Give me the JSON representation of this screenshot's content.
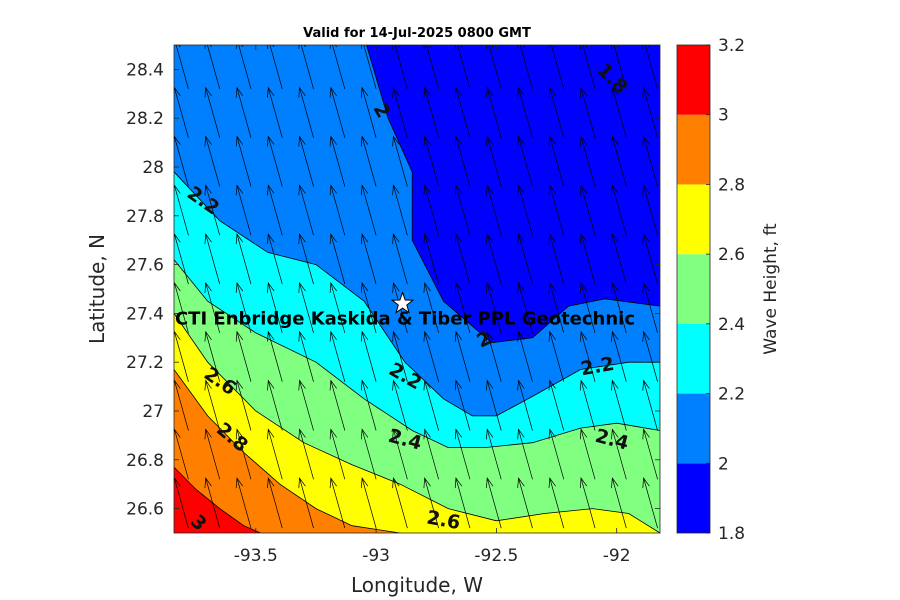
{
  "chart_data": {
    "type": "contour",
    "title": "Valid for 14-Jul-2025 0800 GMT",
    "xlabel": "Longitude, W",
    "ylabel": "Latitude, N",
    "xlim": [
      -93.84,
      -91.82
    ],
    "ylim": [
      26.5,
      28.5
    ],
    "xticks": [
      -93.5,
      -93,
      -92.5,
      -92
    ],
    "xtick_labels": [
      "-93.5",
      "-93",
      "-92.5",
      "-92"
    ],
    "yticks": [
      26.6,
      26.8,
      27,
      27.2,
      27.4,
      27.6,
      27.8,
      28,
      28.2,
      28.4
    ],
    "ytick_labels": [
      "26.6",
      "26.8",
      "27",
      "27.2",
      "27.4",
      "27.6",
      "27.8",
      "28",
      "28.2",
      "28.4"
    ],
    "colorbar": {
      "label": "Wave Height, ft",
      "range": [
        1.8,
        3.2
      ],
      "ticks": [
        "1.8",
        "2",
        "2.2",
        "2.4",
        "2.6",
        "2.8",
        "3",
        "3.2"
      ],
      "bands": [
        {
          "from": 1.8,
          "to": 2.0,
          "color": "#0000ff"
        },
        {
          "from": 2.0,
          "to": 2.2,
          "color": "#0080ff"
        },
        {
          "from": 2.2,
          "to": 2.4,
          "color": "#00ffff"
        },
        {
          "from": 2.4,
          "to": 2.6,
          "color": "#80ff80"
        },
        {
          "from": 2.6,
          "to": 2.8,
          "color": "#ffff00"
        },
        {
          "from": 2.8,
          "to": 3.0,
          "color": "#ff8000"
        },
        {
          "from": 3.0,
          "to": 3.2,
          "color": "#ff0000"
        }
      ]
    },
    "contour_levels": [
      {
        "level": 2.0,
        "points": [
          [
            -93.04,
            28.5
          ],
          [
            -92.95,
            28.2
          ],
          [
            -92.85,
            27.98
          ],
          [
            -92.85,
            27.7
          ],
          [
            -92.72,
            27.45
          ],
          [
            -92.52,
            27.28
          ],
          [
            -92.35,
            27.3
          ],
          [
            -92.2,
            27.43
          ],
          [
            -92.05,
            27.46
          ],
          [
            -91.82,
            27.43
          ]
        ]
      },
      {
        "level": 2.2,
        "points": [
          [
            -93.84,
            27.98
          ],
          [
            -93.65,
            27.78
          ],
          [
            -93.45,
            27.65
          ],
          [
            -93.25,
            27.6
          ],
          [
            -93.05,
            27.45
          ],
          [
            -92.88,
            27.2
          ],
          [
            -92.72,
            27.05
          ],
          [
            -92.6,
            26.98
          ],
          [
            -92.5,
            26.98
          ],
          [
            -92.35,
            27.06
          ],
          [
            -92.15,
            27.17
          ],
          [
            -91.95,
            27.2
          ],
          [
            -91.82,
            27.2
          ]
        ]
      },
      {
        "level": 2.4,
        "points": [
          [
            -93.84,
            27.62
          ],
          [
            -93.7,
            27.45
          ],
          [
            -93.5,
            27.32
          ],
          [
            -93.25,
            27.2
          ],
          [
            -93.05,
            27.05
          ],
          [
            -92.85,
            26.92
          ],
          [
            -92.7,
            26.85
          ],
          [
            -92.55,
            26.85
          ],
          [
            -92.35,
            26.87
          ],
          [
            -92.15,
            26.93
          ],
          [
            -92.0,
            26.95
          ],
          [
            -91.82,
            26.92
          ]
        ]
      },
      {
        "level": 2.6,
        "points": [
          [
            -93.84,
            27.4
          ],
          [
            -93.7,
            27.2
          ],
          [
            -93.5,
            27.0
          ],
          [
            -93.3,
            26.87
          ],
          [
            -93.1,
            26.78
          ],
          [
            -92.9,
            26.7
          ],
          [
            -92.7,
            26.6
          ],
          [
            -92.5,
            26.55
          ],
          [
            -92.3,
            26.58
          ],
          [
            -92.1,
            26.6
          ],
          [
            -91.95,
            26.58
          ],
          [
            -91.82,
            26.5
          ]
        ]
      },
      {
        "level": 2.8,
        "points": [
          [
            -93.84,
            27.17
          ],
          [
            -93.7,
            26.98
          ],
          [
            -93.55,
            26.83
          ],
          [
            -93.4,
            26.7
          ],
          [
            -93.25,
            26.6
          ],
          [
            -93.1,
            26.53
          ],
          [
            -92.9,
            26.5
          ]
        ]
      },
      {
        "level": 3.0,
        "points": [
          [
            -93.84,
            26.77
          ],
          [
            -93.75,
            26.68
          ],
          [
            -93.65,
            26.6
          ],
          [
            -93.55,
            26.53
          ],
          [
            -93.48,
            26.5
          ]
        ]
      }
    ],
    "contour_labels": [
      {
        "text": "1.8",
        "x": -92.02,
        "y": 28.36,
        "angle": 45
      },
      {
        "text": "2",
        "x": -92.98,
        "y": 28.23,
        "angle": 60
      },
      {
        "text": "2",
        "x": -92.55,
        "y": 27.29,
        "angle": -25
      },
      {
        "text": "2.2",
        "x": -93.72,
        "y": 27.86,
        "angle": 35
      },
      {
        "text": "2.2",
        "x": -92.88,
        "y": 27.14,
        "angle": 30
      },
      {
        "text": "2.2",
        "x": -92.08,
        "y": 27.18,
        "angle": -10
      },
      {
        "text": "2.4",
        "x": -92.88,
        "y": 26.88,
        "angle": 15
      },
      {
        "text": "2.4",
        "x": -92.02,
        "y": 26.88,
        "angle": 15
      },
      {
        "text": "2.6",
        "x": -93.65,
        "y": 27.12,
        "angle": 35
      },
      {
        "text": "2.6",
        "x": -92.72,
        "y": 26.55,
        "angle": 10
      },
      {
        "text": "2.8",
        "x": -93.6,
        "y": 26.89,
        "angle": 40
      },
      {
        "text": "3",
        "x": -93.74,
        "y": 26.54,
        "angle": 45
      }
    ],
    "site": {
      "name": "CTI Enbridge  Kaskida & Tiber PPL Geotechnic",
      "lon": -92.89,
      "lat": 27.44
    },
    "vectors": {
      "direction": "toward north-northwest",
      "grid_spacing_lon": 0.13,
      "grid_spacing_lat": 0.2
    }
  }
}
